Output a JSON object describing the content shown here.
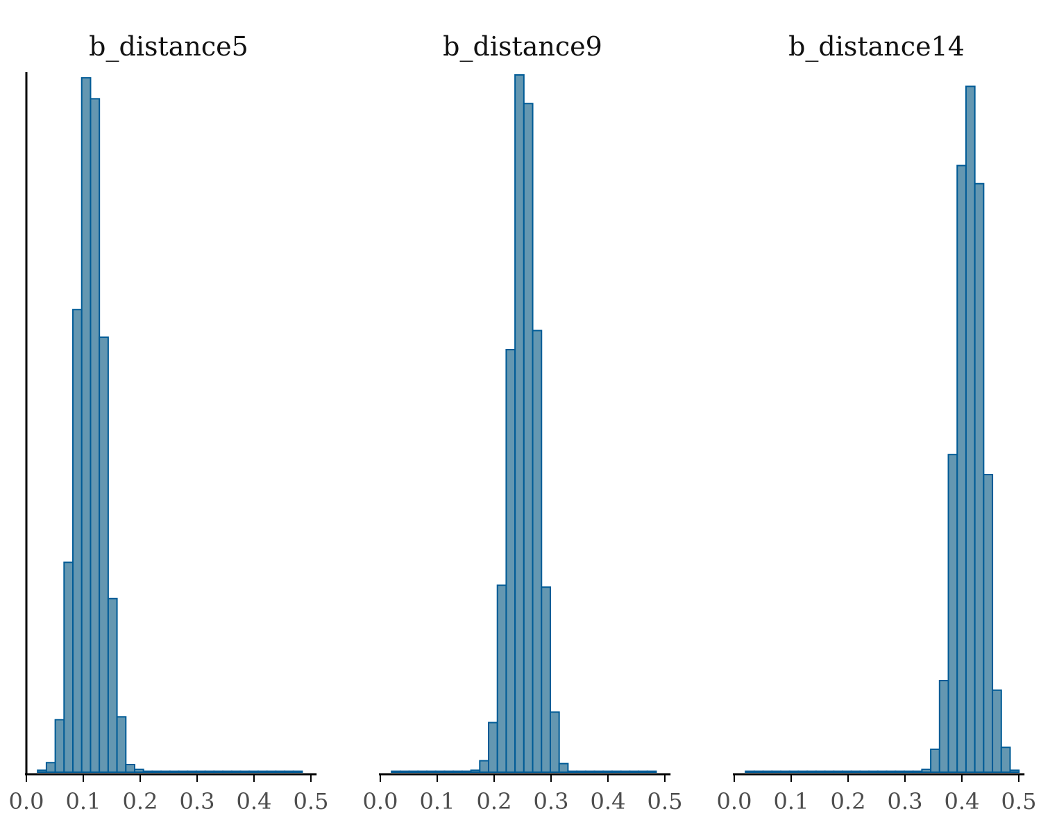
{
  "colors": {
    "fill": "#6497b1",
    "stroke": "#005b96"
  },
  "chart_data": {
    "type": "bar",
    "subtype": "histogram",
    "facets": "3 panels side by side",
    "x_ticks": [
      "0.0",
      "0.1",
      "0.2",
      "0.3",
      "0.4",
      "0.5"
    ],
    "x_tick_values": [
      0.0,
      0.1,
      0.2,
      0.3,
      0.4,
      0.5
    ],
    "xlim": [
      0.0,
      0.5
    ],
    "y_axis": "left axis line only on first panel, no labels",
    "bin_width": 0.0155,
    "panels": [
      {
        "title": "b_distance5",
        "bins": [
          {
            "x": 0.0275,
            "count": 2
          },
          {
            "x": 0.043,
            "count": 10
          },
          {
            "x": 0.0585,
            "count": 55
          },
          {
            "x": 0.074,
            "count": 220
          },
          {
            "x": 0.0895,
            "count": 485
          },
          {
            "x": 0.105,
            "count": 728
          },
          {
            "x": 0.1205,
            "count": 706
          },
          {
            "x": 0.136,
            "count": 456
          },
          {
            "x": 0.1515,
            "count": 182
          },
          {
            "x": 0.167,
            "count": 58
          },
          {
            "x": 0.1825,
            "count": 8
          },
          {
            "x": 0.198,
            "count": 3
          },
          {
            "x": 0.2135,
            "count": 1
          },
          {
            "x": 0.229,
            "count": 1
          },
          {
            "x": 0.2445,
            "count": 1
          },
          {
            "x": 0.26,
            "count": 1
          },
          {
            "x": 0.2755,
            "count": 1
          },
          {
            "x": 0.291,
            "count": 1
          },
          {
            "x": 0.3065,
            "count": 1
          },
          {
            "x": 0.322,
            "count": 1
          },
          {
            "x": 0.3375,
            "count": 1
          },
          {
            "x": 0.353,
            "count": 1
          },
          {
            "x": 0.3685,
            "count": 1
          },
          {
            "x": 0.384,
            "count": 1
          },
          {
            "x": 0.3995,
            "count": 1
          },
          {
            "x": 0.415,
            "count": 1
          },
          {
            "x": 0.4305,
            "count": 1
          },
          {
            "x": 0.446,
            "count": 1
          },
          {
            "x": 0.4615,
            "count": 1
          },
          {
            "x": 0.477,
            "count": 1
          }
        ]
      },
      {
        "title": "b_distance9",
        "bins": [
          {
            "x": 0.0275,
            "count": 1
          },
          {
            "x": 0.043,
            "count": 1
          },
          {
            "x": 0.0585,
            "count": 1
          },
          {
            "x": 0.074,
            "count": 1
          },
          {
            "x": 0.0895,
            "count": 1
          },
          {
            "x": 0.105,
            "count": 1
          },
          {
            "x": 0.1205,
            "count": 1
          },
          {
            "x": 0.136,
            "count": 1
          },
          {
            "x": 0.1515,
            "count": 1
          },
          {
            "x": 0.167,
            "count": 2
          },
          {
            "x": 0.1825,
            "count": 12
          },
          {
            "x": 0.198,
            "count": 52
          },
          {
            "x": 0.2135,
            "count": 196
          },
          {
            "x": 0.229,
            "count": 443
          },
          {
            "x": 0.2445,
            "count": 731
          },
          {
            "x": 0.26,
            "count": 701
          },
          {
            "x": 0.2755,
            "count": 463
          },
          {
            "x": 0.291,
            "count": 194
          },
          {
            "x": 0.3065,
            "count": 63
          },
          {
            "x": 0.322,
            "count": 9
          },
          {
            "x": 0.3375,
            "count": 1
          },
          {
            "x": 0.353,
            "count": 1
          },
          {
            "x": 0.3685,
            "count": 1
          },
          {
            "x": 0.384,
            "count": 1
          },
          {
            "x": 0.3995,
            "count": 1
          },
          {
            "x": 0.415,
            "count": 1
          },
          {
            "x": 0.4305,
            "count": 1
          },
          {
            "x": 0.446,
            "count": 1
          },
          {
            "x": 0.4615,
            "count": 1
          },
          {
            "x": 0.477,
            "count": 1
          }
        ]
      },
      {
        "title": "b_distance14",
        "bins": [
          {
            "x": 0.0275,
            "count": 1
          },
          {
            "x": 0.043,
            "count": 1
          },
          {
            "x": 0.0585,
            "count": 1
          },
          {
            "x": 0.074,
            "count": 1
          },
          {
            "x": 0.0895,
            "count": 1
          },
          {
            "x": 0.105,
            "count": 1
          },
          {
            "x": 0.1205,
            "count": 1
          },
          {
            "x": 0.136,
            "count": 1
          },
          {
            "x": 0.1515,
            "count": 1
          },
          {
            "x": 0.167,
            "count": 1
          },
          {
            "x": 0.1825,
            "count": 1
          },
          {
            "x": 0.198,
            "count": 1
          },
          {
            "x": 0.2135,
            "count": 1
          },
          {
            "x": 0.229,
            "count": 1
          },
          {
            "x": 0.2445,
            "count": 1
          },
          {
            "x": 0.26,
            "count": 1
          },
          {
            "x": 0.2755,
            "count": 1
          },
          {
            "x": 0.291,
            "count": 1
          },
          {
            "x": 0.3065,
            "count": 1
          },
          {
            "x": 0.322,
            "count": 1
          },
          {
            "x": 0.3375,
            "count": 3
          },
          {
            "x": 0.353,
            "count": 24
          },
          {
            "x": 0.3685,
            "count": 96
          },
          {
            "x": 0.384,
            "count": 333
          },
          {
            "x": 0.3995,
            "count": 636
          },
          {
            "x": 0.415,
            "count": 719
          },
          {
            "x": 0.4305,
            "count": 617
          },
          {
            "x": 0.446,
            "count": 312
          },
          {
            "x": 0.4615,
            "count": 86
          },
          {
            "x": 0.477,
            "count": 26
          },
          {
            "x": 0.4925,
            "count": 2
          }
        ]
      }
    ]
  }
}
